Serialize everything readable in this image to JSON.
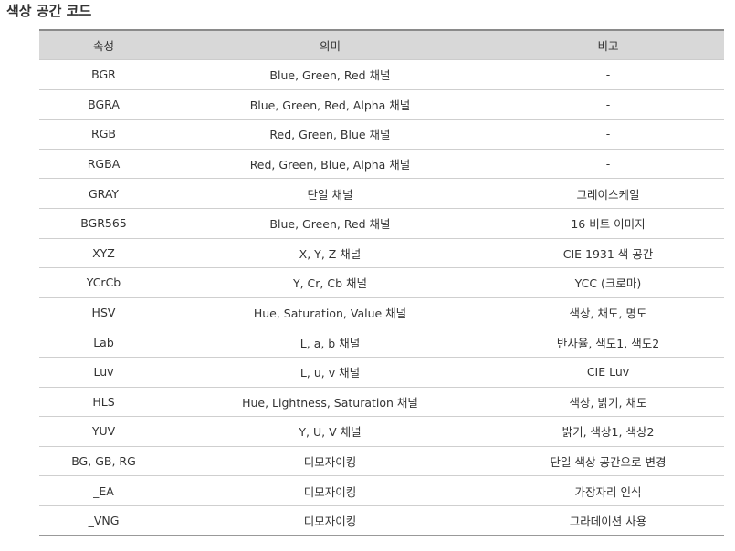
{
  "page": {
    "title": "색상 공간 코드"
  },
  "table": {
    "headers": [
      "속성",
      "의미",
      "비고"
    ],
    "rows": [
      [
        "BGR",
        "Blue, Green, Red 채널",
        "-"
      ],
      [
        "BGRA",
        "Blue, Green, Red, Alpha 채널",
        "-"
      ],
      [
        "RGB",
        "Red, Green, Blue 채널",
        "-"
      ],
      [
        "RGBA",
        "Red, Green, Blue, Alpha 채널",
        "-"
      ],
      [
        "GRAY",
        "단일 채널",
        "그레이스케일"
      ],
      [
        "BGR565",
        "Blue, Green, Red 채널",
        "16 비트 이미지"
      ],
      [
        "XYZ",
        "X, Y, Z 채널",
        "CIE 1931 색 공간"
      ],
      [
        "YCrCb",
        "Y, Cr, Cb 채널",
        "YCC (크로마)"
      ],
      [
        "HSV",
        "Hue, Saturation, Value 채널",
        "색상, 채도, 명도"
      ],
      [
        "Lab",
        "L, a, b 채널",
        "반사율, 색도1, 색도2"
      ],
      [
        "Luv",
        "L, u, v 채널",
        "CIE Luv"
      ],
      [
        "HLS",
        "Hue, Lightness, Saturation 채널",
        "색상, 밝기, 채도"
      ],
      [
        "YUV",
        "Y, U, V 채널",
        "밝기, 색상1, 색상2"
      ],
      [
        "BG, GB, RG",
        "디모자이킹",
        "단일 색상 공간으로 변경"
      ],
      [
        "_EA",
        "디모자이킹",
        "가장자리 인식"
      ],
      [
        "_VNG",
        "디모자이킹",
        "그라데이션 사용"
      ]
    ]
  }
}
